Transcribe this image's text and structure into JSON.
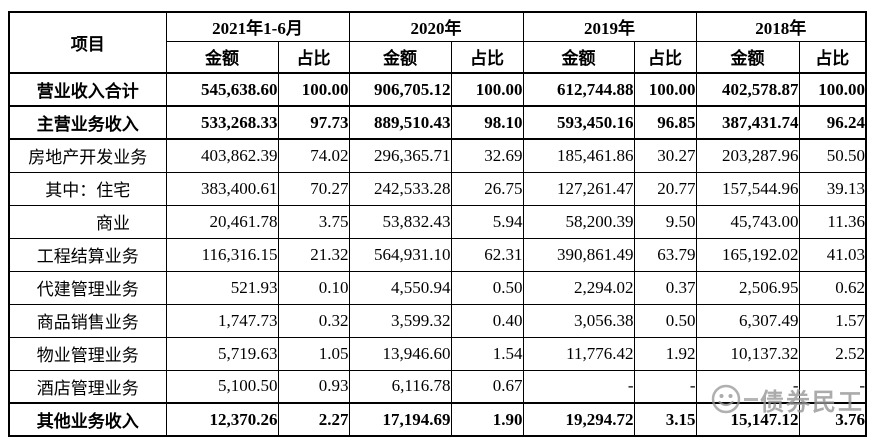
{
  "table": {
    "item_header": "项目",
    "col_groups": [
      {
        "label": "2021年1-6月"
      },
      {
        "label": "2020年"
      },
      {
        "label": "2019年"
      },
      {
        "label": "2018年"
      }
    ],
    "sub_amount": "金额",
    "sub_ratio": "占比",
    "rows": [
      {
        "label": "营业收入合计",
        "bold": true,
        "indent": false,
        "values": [
          "545,638.60",
          "100.00",
          "906,705.12",
          "100.00",
          "612,744.88",
          "100.00",
          "402,578.87",
          "100.00"
        ]
      },
      {
        "label": "主营业务收入",
        "bold": true,
        "indent": false,
        "values": [
          "533,268.33",
          "97.73",
          "889,510.43",
          "98.10",
          "593,450.16",
          "96.85",
          "387,431.74",
          "96.24"
        ]
      },
      {
        "label": "房地产开发业务",
        "bold": false,
        "indent": false,
        "values": [
          "403,862.39",
          "74.02",
          "296,365.71",
          "32.69",
          "185,461.86",
          "30.27",
          "203,287.96",
          "50.50"
        ]
      },
      {
        "label": "其中：住宅",
        "bold": false,
        "indent": false,
        "values": [
          "383,400.61",
          "70.27",
          "242,533.28",
          "26.75",
          "127,261.47",
          "20.77",
          "157,544.96",
          "39.13"
        ]
      },
      {
        "label": "商业",
        "bold": false,
        "indent": true,
        "values": [
          "20,461.78",
          "3.75",
          "53,832.43",
          "5.94",
          "58,200.39",
          "9.50",
          "45,743.00",
          "11.36"
        ]
      },
      {
        "label": "工程结算业务",
        "bold": false,
        "indent": false,
        "values": [
          "116,316.15",
          "21.32",
          "564,931.10",
          "62.31",
          "390,861.49",
          "63.79",
          "165,192.02",
          "41.03"
        ]
      },
      {
        "label": "代建管理业务",
        "bold": false,
        "indent": false,
        "values": [
          "521.93",
          "0.10",
          "4,550.94",
          "0.50",
          "2,294.02",
          "0.37",
          "2,506.95",
          "0.62"
        ]
      },
      {
        "label": "商品销售业务",
        "bold": false,
        "indent": false,
        "values": [
          "1,747.73",
          "0.32",
          "3,599.32",
          "0.40",
          "3,056.38",
          "0.50",
          "6,307.49",
          "1.57"
        ]
      },
      {
        "label": "物业管理业务",
        "bold": false,
        "indent": false,
        "values": [
          "5,719.63",
          "1.05",
          "13,946.60",
          "1.54",
          "11,776.42",
          "1.92",
          "10,137.32",
          "2.52"
        ]
      },
      {
        "label": "酒店管理业务",
        "bold": false,
        "indent": false,
        "values": [
          "5,100.50",
          "0.93",
          "6,116.78",
          "0.67",
          "-",
          "-",
          "-",
          "-"
        ]
      },
      {
        "label": "其他业务收入",
        "bold": true,
        "indent": false,
        "values": [
          "12,370.26",
          "2.27",
          "17,194.69",
          "1.90",
          "19,294.72",
          "3.15",
          "15,147.12",
          "3.76"
        ]
      }
    ]
  },
  "watermark": {
    "text": "债券民工",
    "icon": "wechat-smiley-icon",
    "color": "#969696"
  },
  "colors": {
    "border": "#000000",
    "background": "#ffffff",
    "text": "#000000"
  }
}
